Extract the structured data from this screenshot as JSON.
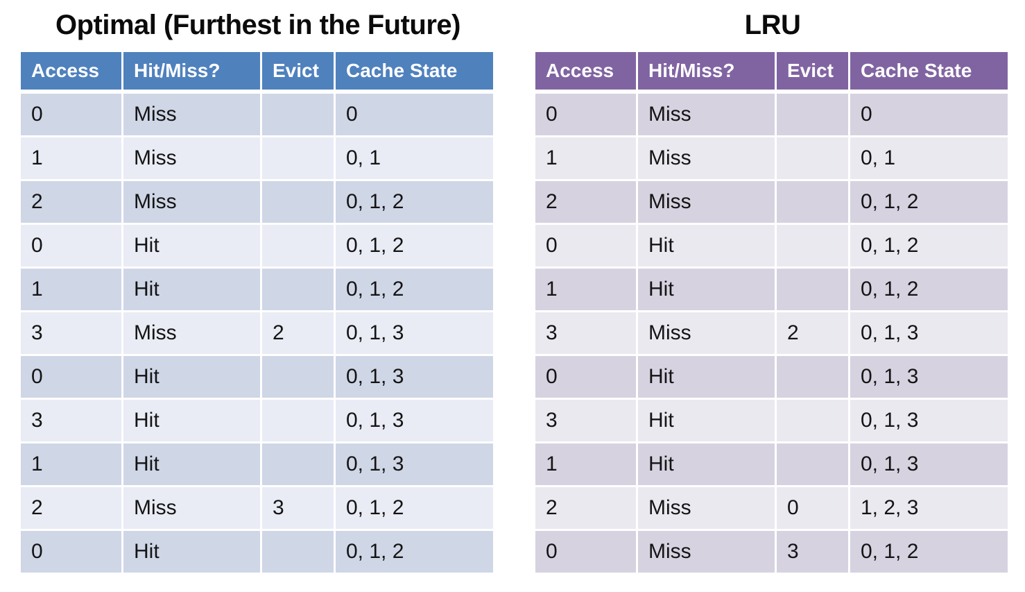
{
  "page": {
    "background": "#FFFFFF"
  },
  "chart_data": [
    {
      "type": "table",
      "title": "Optimal (Furthest in the Future)",
      "columns": [
        "Access",
        "Hit/Miss?",
        "Evict",
        "Cache State"
      ],
      "rows": [
        [
          "0",
          "Miss",
          "",
          "0"
        ],
        [
          "1",
          "Miss",
          "",
          "0, 1"
        ],
        [
          "2",
          "Miss",
          "",
          "0, 1, 2"
        ],
        [
          "0",
          "Hit",
          "",
          "0, 1, 2"
        ],
        [
          "1",
          "Hit",
          "",
          "0, 1, 2"
        ],
        [
          "3",
          "Miss",
          "2",
          "0, 1, 3"
        ],
        [
          "0",
          "Hit",
          "",
          "0, 1, 3"
        ],
        [
          "3",
          "Hit",
          "",
          "0, 1, 3"
        ],
        [
          "1",
          "Hit",
          "",
          "0, 1, 3"
        ],
        [
          "2",
          "Miss",
          "3",
          "0, 1, 2"
        ],
        [
          "0",
          "Hit",
          "",
          "0, 1, 2"
        ]
      ],
      "colors": {
        "header_bg": "#4F81BD",
        "header_text": "#FFFFFF",
        "row_band_dark": "#CFD6E6",
        "row_band_light": "#E9ECF4"
      }
    },
    {
      "type": "table",
      "title": "LRU",
      "columns": [
        "Access",
        "Hit/Miss?",
        "Evict",
        "Cache State"
      ],
      "rows": [
        [
          "0",
          "Miss",
          "",
          "0"
        ],
        [
          "1",
          "Miss",
          "",
          "0, 1"
        ],
        [
          "2",
          "Miss",
          "",
          "0, 1, 2"
        ],
        [
          "0",
          "Hit",
          "",
          "0, 1, 2"
        ],
        [
          "1",
          "Hit",
          "",
          "0, 1, 2"
        ],
        [
          "3",
          "Miss",
          "2",
          "0, 1, 3"
        ],
        [
          "0",
          "Hit",
          "",
          "0, 1, 3"
        ],
        [
          "3",
          "Hit",
          "",
          "0, 1, 3"
        ],
        [
          "1",
          "Hit",
          "",
          "0, 1, 3"
        ],
        [
          "2",
          "Miss",
          "0",
          "1, 2, 3"
        ],
        [
          "0",
          "Miss",
          "3",
          "0, 1, 2"
        ]
      ],
      "colors": {
        "header_bg": "#8064A2",
        "header_text": "#FFFFFF",
        "row_band_dark": "#D6D2E0",
        "row_band_light": "#EBE9F0"
      }
    }
  ]
}
